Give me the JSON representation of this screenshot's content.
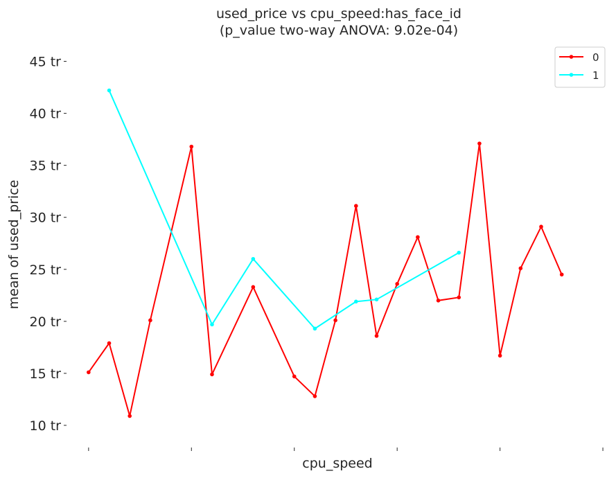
{
  "chart_data": {
    "type": "line",
    "title": "used_price vs cpu_speed:has_face_id",
    "subtitle": "(p_value two-way ANOVA: 9.02e-04)",
    "xlabel": "cpu_speed",
    "ylabel": "mean of used_price",
    "ylim": [
      8,
      46.5
    ],
    "yticks": [
      10,
      15,
      20,
      25,
      30,
      35,
      40,
      45
    ],
    "ytick_labels": [
      "10 tr",
      "15 tr",
      "20 tr",
      "25 tr",
      "30 tr",
      "35 tr",
      "40 tr",
      "45 tr"
    ],
    "x": [
      0,
      1,
      2,
      3,
      4,
      5,
      6,
      7,
      8,
      9,
      10,
      11,
      12,
      13,
      14,
      15,
      16,
      17,
      18,
      19,
      20,
      21,
      22,
      23
    ],
    "xlim": [
      -0.5,
      25.2
    ],
    "xticks": [
      0,
      5,
      10,
      15,
      20,
      25
    ],
    "grid": false,
    "legend_position": "top-right",
    "series": [
      {
        "name": "0",
        "color": "#ff0000",
        "points": [
          [
            0,
            15.1
          ],
          [
            1,
            17.9
          ],
          [
            2,
            10.9
          ],
          [
            3,
            20.1
          ],
          [
            5,
            36.8
          ],
          [
            6,
            14.9
          ],
          [
            8,
            23.3
          ],
          [
            10,
            14.7
          ],
          [
            11,
            12.8
          ],
          [
            12,
            20.1
          ],
          [
            13,
            31.1
          ],
          [
            14,
            18.6
          ],
          [
            15,
            23.6
          ],
          [
            16,
            28.1
          ],
          [
            17,
            22.0
          ],
          [
            18,
            22.3
          ],
          [
            19,
            37.1
          ],
          [
            20,
            16.7
          ],
          [
            21,
            25.1
          ],
          [
            22,
            29.1
          ],
          [
            23,
            24.5
          ]
        ]
      },
      {
        "name": "1",
        "color": "#00ffff",
        "points": [
          [
            1,
            42.2
          ],
          [
            6,
            19.7
          ],
          [
            8,
            26.0
          ],
          [
            11,
            19.3
          ],
          [
            13,
            21.9
          ],
          [
            14,
            22.1
          ],
          [
            18,
            26.6
          ]
        ]
      }
    ]
  }
}
